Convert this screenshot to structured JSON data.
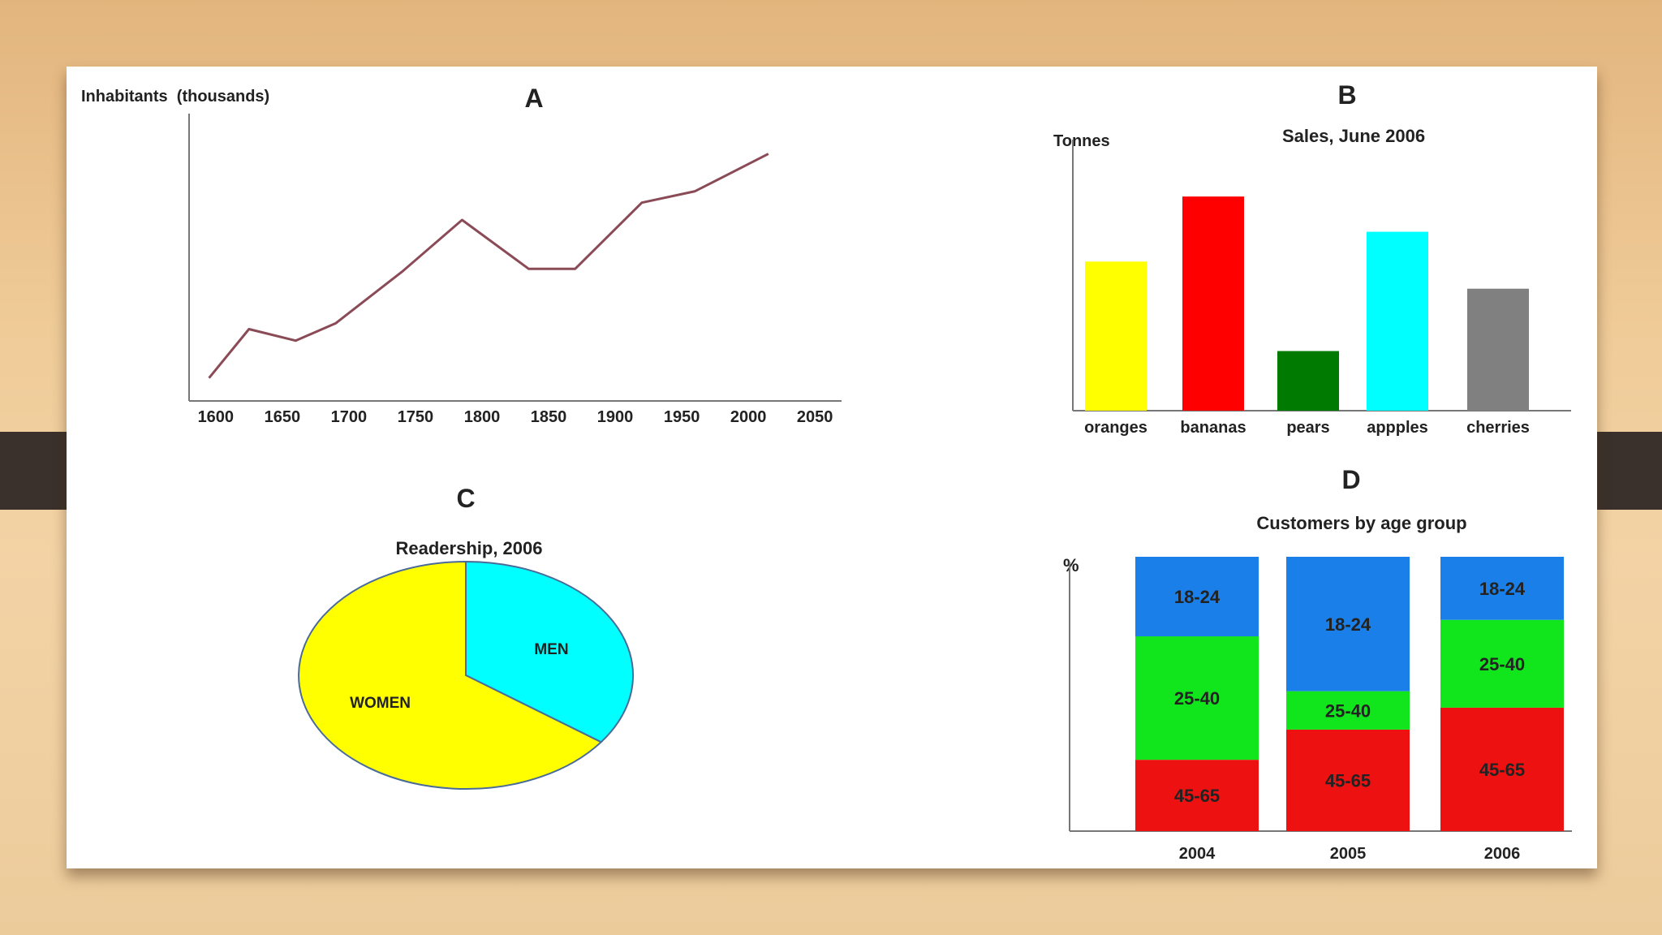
{
  "colors": {
    "line": "#8a4b57",
    "axis": "#777777",
    "text": "#222222",
    "pie_women": "#ffff00",
    "pie_men": "#00ffff",
    "d_young": "#1a7fe8",
    "d_mid": "#11e51c",
    "d_old": "#ee1111"
  },
  "chart_data": [
    {
      "type": "line",
      "letter": "A",
      "title": "",
      "ylabel": "Inhabitants  (thousands)",
      "xlabel": "",
      "xticks": [
        1600,
        1650,
        1700,
        1750,
        1800,
        1850,
        1900,
        1950,
        2000,
        2050
      ],
      "xlim": [
        1580,
        2070
      ],
      "ylim": [
        0,
        100
      ],
      "x": [
        1595,
        1625,
        1660,
        1690,
        1740,
        1785,
        1835,
        1870,
        1920,
        1960,
        2015
      ],
      "y": [
        8,
        25,
        21,
        27,
        45,
        63,
        46,
        46,
        69,
        73,
        86
      ]
    },
    {
      "type": "bar",
      "letter": "B",
      "title": "Sales, June 2006",
      "ylabel": "Tonnes",
      "xlabel": "",
      "ylim": [
        0,
        100
      ],
      "categories": [
        "oranges",
        "bananas",
        "pears",
        "appples",
        "cherries"
      ],
      "values": [
        55,
        79,
        22,
        66,
        45
      ],
      "colors": [
        "#ffff00",
        "#ff0000",
        "#007a00",
        "#00ffff",
        "#808080"
      ]
    },
    {
      "type": "pie",
      "letter": "C",
      "title": "Readership, 2006",
      "labels": [
        "MEN",
        "WOMEN"
      ],
      "values": [
        35,
        65
      ],
      "colors": [
        "#00ffff",
        "#ffff00"
      ]
    },
    {
      "type": "bar",
      "stacked": true,
      "letter": "D",
      "title": "Customers by age group",
      "ylabel": "%",
      "xlabel": "",
      "ylim": [
        0,
        100
      ],
      "categories": [
        "2004",
        "2005",
        "2006"
      ],
      "series": [
        {
          "name": "45-65",
          "values": [
            26,
            37,
            45
          ],
          "color": "#ee1111"
        },
        {
          "name": "25-40",
          "values": [
            45,
            14,
            32
          ],
          "color": "#11e51c"
        },
        {
          "name": "18-24",
          "values": [
            29,
            49,
            23
          ],
          "color": "#1a7fe8"
        }
      ]
    }
  ]
}
